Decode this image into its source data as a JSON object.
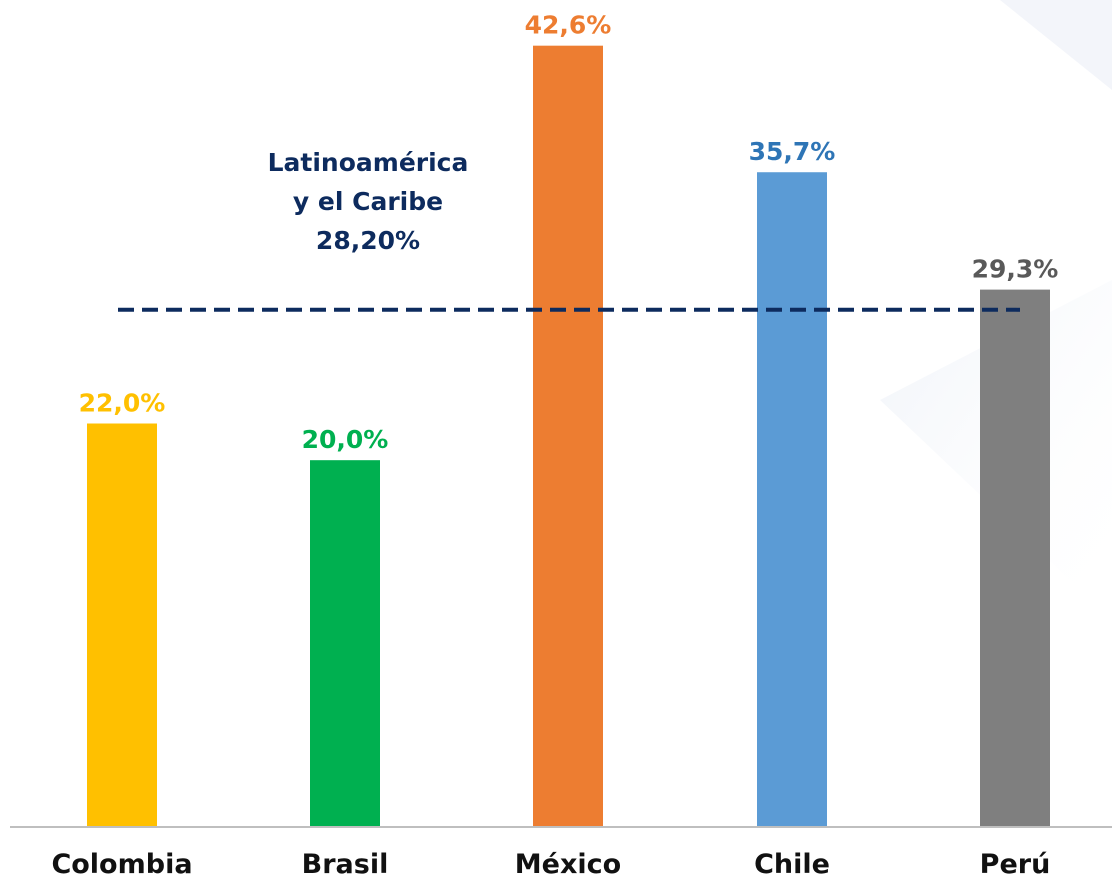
{
  "chart_data": {
    "type": "bar",
    "categories": [
      "Colombia",
      "Brasil",
      "México",
      "Chile",
      "Perú"
    ],
    "values": [
      22.0,
      20.0,
      42.6,
      35.7,
      29.3
    ],
    "value_labels": [
      "22,0%",
      "20,0%",
      "42,6%",
      "35,7%",
      "29,3%"
    ],
    "colors": [
      "#FFC000",
      "#00B050",
      "#ED7D31",
      "#5B9BD5",
      "#7F7F7F"
    ],
    "label_colors": [
      "#FFC000",
      "#00B050",
      "#ED7D31",
      "#2E75B6",
      "#595959"
    ],
    "ylim": [
      0,
      44
    ],
    "grid": false,
    "reference_line": {
      "value": 28.2,
      "label_lines": [
        "Latinoamérica",
        "y el Caribe",
        "28,20%"
      ],
      "color": "#0D2B5E",
      "style": "dashed"
    },
    "title": "",
    "xlabel": "",
    "ylabel": ""
  }
}
